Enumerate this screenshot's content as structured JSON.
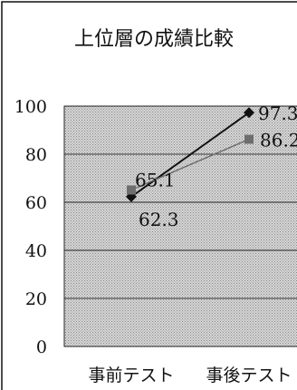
{
  "chart_data": {
    "type": "line",
    "title": "上位層の成績比較",
    "categories": [
      "事前テスト",
      "事後テスト"
    ],
    "ylim": [
      0,
      100
    ],
    "yticks": [
      0,
      20,
      40,
      60,
      80,
      100
    ],
    "ytick_labels": [
      "0",
      "20",
      "40",
      "60",
      "80",
      "100"
    ],
    "grid": true,
    "series": [
      {
        "values": [
          62.3,
          97.3
        ],
        "labels": [
          "62.3",
          "97.3"
        ],
        "color": "#111111",
        "marker": "diamond"
      },
      {
        "values": [
          65.1,
          86.2
        ],
        "labels": [
          "65.1",
          "86.2"
        ],
        "color": "#6e6e6e",
        "marker": "square"
      }
    ]
  }
}
